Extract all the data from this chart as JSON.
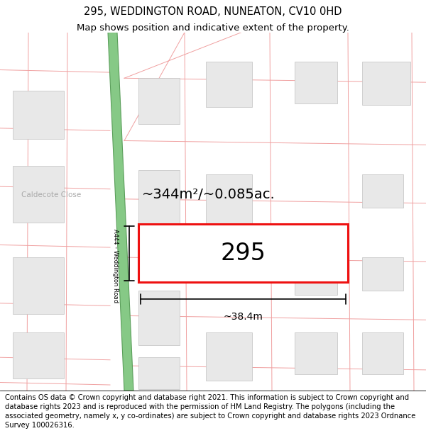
{
  "title_line1": "295, WEDDINGTON ROAD, NUNEATON, CV10 0HD",
  "title_line2": "Map shows position and indicative extent of the property.",
  "footer_text": "Contains OS data © Crown copyright and database right 2021. This information is subject to Crown copyright and database rights 2023 and is reproduced with the permission of HM Land Registry. The polygons (including the associated geometry, namely x, y co-ordinates) are subject to Crown copyright and database rights 2023 Ordnance Survey 100026316.",
  "bg_color": "#ffffff",
  "map_bg": "#ffffff",
  "road_color_green": "#86c986",
  "road_border_green": "#5a9e5a",
  "building_fill": "#e8e8e8",
  "building_edge": "#c0c0c0",
  "plot_line_color": "#ee1111",
  "grid_line_color": "#f0a0a0",
  "street_label": "A444 - Weddington Road",
  "caldecote_label": "Caldecote Close",
  "area_label": "~344m²/~0.085ac.",
  "num_label": "295",
  "width_label": "~38.4m",
  "title_fontsize": 10.5,
  "subtitle_fontsize": 9.5,
  "footer_fontsize": 7.2
}
